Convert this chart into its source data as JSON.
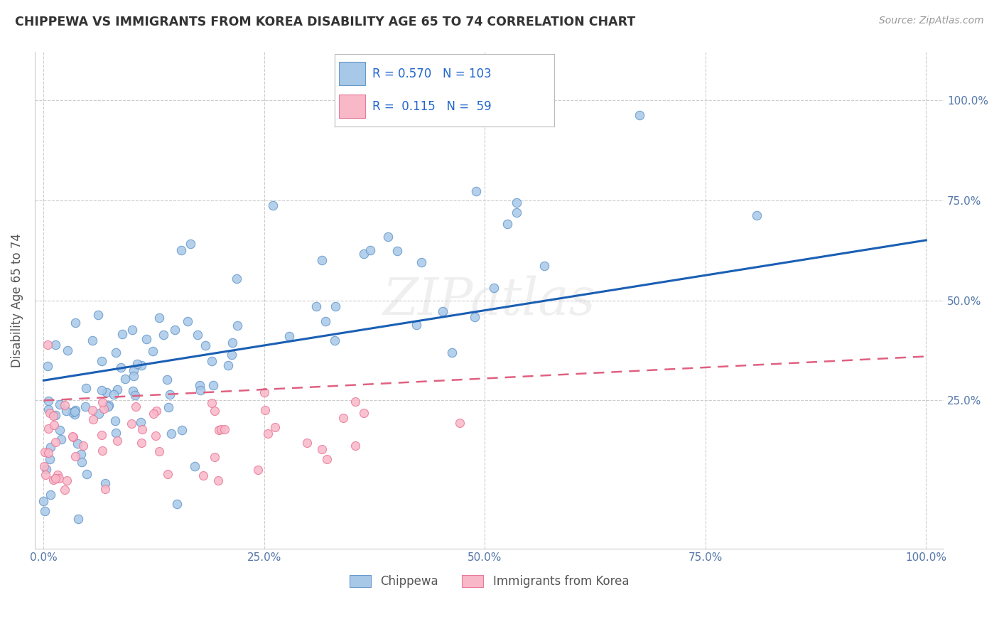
{
  "title": "CHIPPEWA VS IMMIGRANTS FROM KOREA DISABILITY AGE 65 TO 74 CORRELATION CHART",
  "source": "Source: ZipAtlas.com",
  "ylabel": "Disability Age 65 to 74",
  "legend_labels": [
    "Chippewa",
    "Immigrants from Korea"
  ],
  "chippewa_color": "#a8c8e8",
  "chippewa_edge_color": "#6699cc",
  "korea_color": "#f9b8c8",
  "korea_edge_color": "#e87898",
  "chippewa_line_color": "#1a5fb4",
  "korea_line_color": "#e06080",
  "R_chippewa": 0.57,
  "N_chippewa": 103,
  "R_korea": 0.115,
  "N_korea": 59,
  "background_color": "#ffffff",
  "watermark_text": "ZIPatlas",
  "xlim": [
    -0.01,
    1.02
  ],
  "ylim": [
    -0.12,
    1.12
  ],
  "xticks": [
    0.0,
    0.25,
    0.5,
    0.75,
    1.0
  ],
  "yticks": [
    0.25,
    0.5,
    0.75,
    1.0
  ],
  "xtick_labels": [
    "0.0%",
    "25.0%",
    "50.0%",
    "75.0%",
    "100.0%"
  ],
  "ytick_labels": [
    "25.0%",
    "50.0%",
    "75.0%",
    "100.0%"
  ],
  "chip_line_x0": 0.0,
  "chip_line_y0": 0.3,
  "chip_line_x1": 1.0,
  "chip_line_y1": 0.65,
  "korea_line_x0": 0.0,
  "korea_line_y0": 0.25,
  "korea_line_x1": 1.0,
  "korea_line_y1": 0.36
}
